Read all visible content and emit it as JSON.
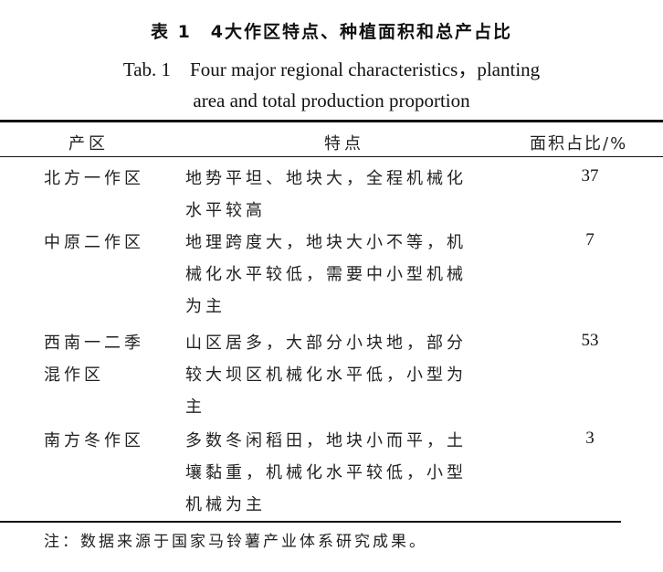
{
  "title_cn": "表 1　4大作区特点、种植面积和总产占比",
  "title_en_line1": "Tab. 1　Four major regional characteristics，planting",
  "title_en_line2": "area and total production proportion",
  "headers": [
    "产区",
    "特点",
    "面积占比/%"
  ],
  "rows": [
    {
      "region": [
        "北方一作区"
      ],
      "features": [
        "地势平坦、地块大，全程机械化",
        "水平较高"
      ],
      "area_pct": "37"
    },
    {
      "region": [
        "中原二作区"
      ],
      "features": [
        "地理跨度大，地块大小不等，机",
        "械化水平较低，需要中小型机械",
        "为主"
      ],
      "area_pct": "7"
    },
    {
      "region": [
        "西南一二季",
        "混作区"
      ],
      "features": [
        "山区居多，大部分小块地，部分",
        "较大坝区机械化水平低，小型为",
        "主"
      ],
      "area_pct": "53"
    },
    {
      "region": [
        "南方冬作区"
      ],
      "features": [
        "多数冬闲稻田，地块小而平，土",
        "壤黏重，机械化水平较低，小型",
        "机械为主"
      ],
      "area_pct": "3"
    }
  ],
  "note": "注：数据来源于国家马铃薯产业体系研究成果。"
}
